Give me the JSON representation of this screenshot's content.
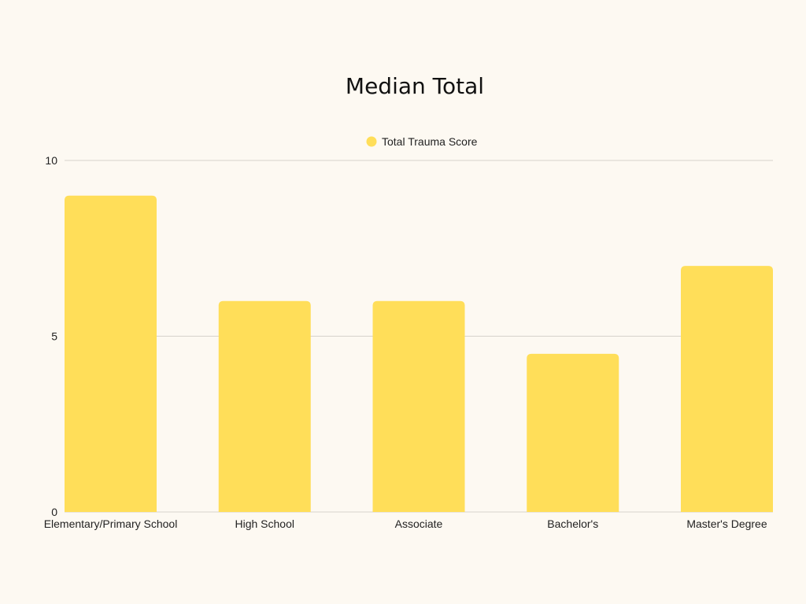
{
  "chart_data": {
    "type": "bar",
    "title": "Median Total",
    "xlabel": "",
    "ylabel": "",
    "categories": [
      "Elementary/Primary School",
      "High School",
      "Associate",
      "Bachelor's",
      "Master's Degree"
    ],
    "series": [
      {
        "name": "Total Trauma Score",
        "values": [
          9,
          6,
          6,
          4.5,
          7
        ],
        "color": "#ffde59"
      }
    ],
    "ylim": [
      0,
      10
    ],
    "yticks": [
      "0",
      "5",
      "10"
    ],
    "grid": true,
    "legend": "top-center"
  },
  "colors": {
    "background": "#fdf9f2",
    "bar": "#ffde59",
    "grid": "#d6d2cc",
    "text": "#222222"
  }
}
